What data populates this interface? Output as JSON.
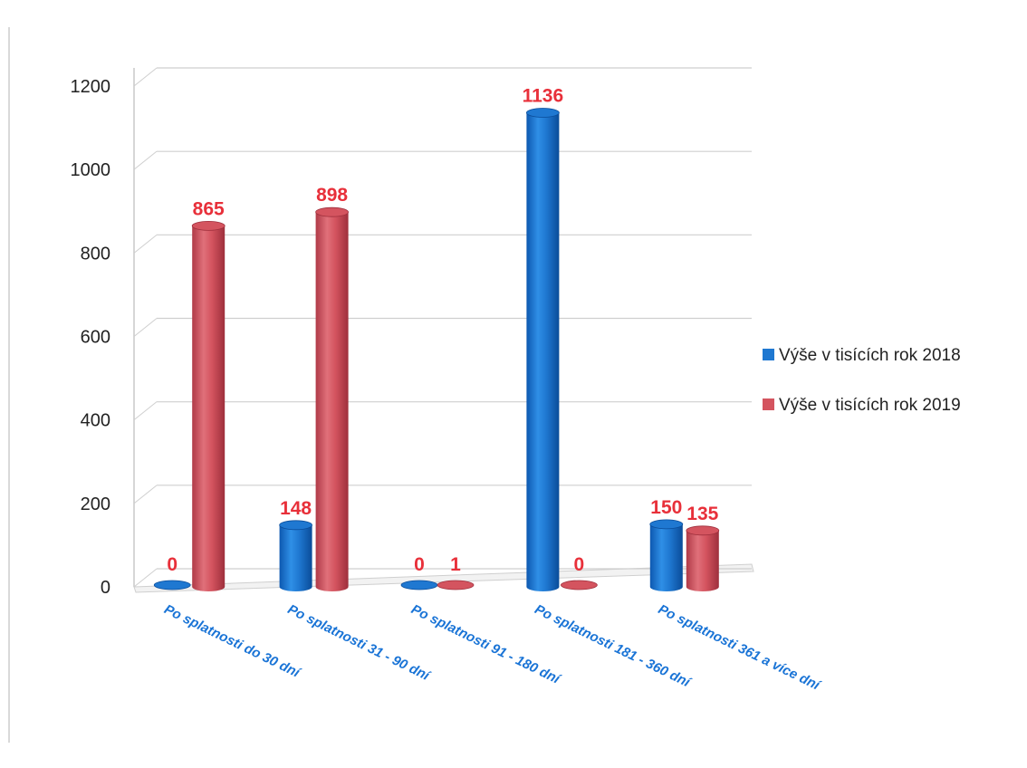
{
  "chart_data": {
    "type": "bar",
    "categories": [
      "Po splatnosti do 30 dní",
      "Po splatnosti  31 - 90 dní",
      "Po splatnosti 91 - 180 dní",
      "Po splatnosti  181 - 360 dní",
      "Po splatnosti 361 a více dní"
    ],
    "series": [
      {
        "name": "Výše v  tisících rok 2018",
        "values": [
          0,
          148,
          0,
          1136,
          150
        ],
        "color": "#1f78d1"
      },
      {
        "name": "Výše v  tisících rok 2019",
        "values": [
          865,
          898,
          1,
          0,
          135
        ],
        "color": "#d4545f"
      }
    ],
    "data_label_color": "#e8303a",
    "ylim": [
      0,
      1200
    ],
    "yticks": [
      "0",
      "200",
      "400",
      "600",
      "800",
      "1000",
      "1200"
    ],
    "grid": true,
    "legend_position": "right"
  }
}
